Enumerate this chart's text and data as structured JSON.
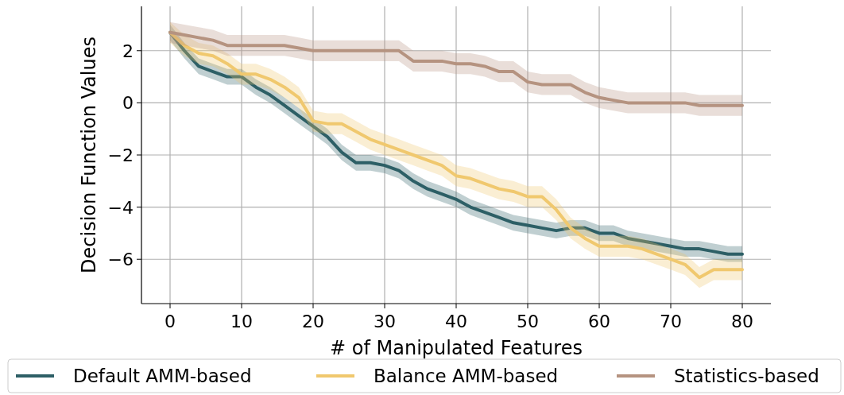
{
  "chart_data": {
    "type": "line",
    "xlabel": "# of Manipulated Features",
    "ylabel": "Decision Function Values",
    "x": [
      0,
      2,
      4,
      6,
      8,
      10,
      12,
      14,
      16,
      18,
      20,
      22,
      24,
      26,
      28,
      30,
      32,
      34,
      36,
      38,
      40,
      42,
      44,
      46,
      48,
      50,
      52,
      54,
      56,
      58,
      60,
      62,
      64,
      66,
      68,
      70,
      72,
      74,
      76,
      78,
      80
    ],
    "xlim": [
      -4,
      84
    ],
    "xticks": [
      0,
      10,
      20,
      30,
      40,
      50,
      60,
      70,
      80
    ],
    "ylim": [
      -7.7,
      3.7
    ],
    "yticks": [
      {
        "value": -6,
        "label": "−6"
      },
      {
        "value": -4,
        "label": "−4"
      },
      {
        "value": -2,
        "label": "−2"
      },
      0,
      2
    ],
    "grid": true,
    "legend": "bottom",
    "line_style": "solid",
    "marker": "none",
    "series": [
      {
        "name": "Default AMM-based",
        "color": "#2d5f66",
        "values": [
          2.7,
          2.0,
          1.4,
          1.2,
          1.0,
          1.0,
          0.6,
          0.3,
          -0.1,
          -0.5,
          -0.9,
          -1.3,
          -1.9,
          -2.3,
          -2.3,
          -2.4,
          -2.6,
          -3.0,
          -3.3,
          -3.5,
          -3.7,
          -4.0,
          -4.2,
          -4.4,
          -4.6,
          -4.7,
          -4.8,
          -4.9,
          -4.8,
          -4.8,
          -5.0,
          -5.0,
          -5.2,
          -5.3,
          -5.4,
          -5.5,
          -5.6,
          -5.6,
          -5.7,
          -5.8,
          -5.8
        ],
        "lower": [
          2.4,
          1.7,
          1.1,
          0.9,
          0.7,
          0.7,
          0.3,
          0.0,
          -0.4,
          -0.8,
          -1.2,
          -1.6,
          -2.2,
          -2.6,
          -2.6,
          -2.7,
          -2.9,
          -3.3,
          -3.6,
          -3.8,
          -4.0,
          -4.3,
          -4.5,
          -4.7,
          -4.9,
          -5.0,
          -5.1,
          -5.2,
          -5.1,
          -5.1,
          -5.3,
          -5.3,
          -5.5,
          -5.6,
          -5.7,
          -5.8,
          -5.9,
          -5.9,
          -6.0,
          -6.1,
          -6.1
        ],
        "upper": [
          3.0,
          2.3,
          1.7,
          1.5,
          1.3,
          1.3,
          0.9,
          0.6,
          0.2,
          -0.2,
          -0.6,
          -1.0,
          -1.6,
          -2.0,
          -2.0,
          -2.1,
          -2.3,
          -2.7,
          -3.0,
          -3.2,
          -3.4,
          -3.7,
          -3.9,
          -4.1,
          -4.3,
          -4.4,
          -4.5,
          -4.6,
          -4.5,
          -4.5,
          -4.7,
          -4.7,
          -4.9,
          -5.0,
          -5.1,
          -5.2,
          -5.3,
          -5.3,
          -5.4,
          -5.5,
          -5.5
        ]
      },
      {
        "name": "Balance AMM-based",
        "color": "#f0c86e",
        "values": [
          2.7,
          2.2,
          1.9,
          1.8,
          1.5,
          1.1,
          1.1,
          0.9,
          0.6,
          0.2,
          -0.7,
          -0.8,
          -0.8,
          -1.1,
          -1.4,
          -1.6,
          -1.8,
          -2.0,
          -2.2,
          -2.4,
          -2.8,
          -2.9,
          -3.1,
          -3.3,
          -3.4,
          -3.6,
          -3.6,
          -4.1,
          -4.8,
          -5.2,
          -5.5,
          -5.5,
          -5.5,
          -5.6,
          -5.8,
          -6.0,
          -6.2,
          -6.7,
          -6.4,
          -6.4,
          -6.4
        ],
        "lower": [
          2.3,
          1.8,
          1.5,
          1.4,
          1.1,
          0.7,
          0.7,
          0.5,
          0.2,
          -0.2,
          -1.1,
          -1.2,
          -1.2,
          -1.5,
          -1.8,
          -2.0,
          -2.2,
          -2.4,
          -2.6,
          -2.8,
          -3.2,
          -3.3,
          -3.5,
          -3.7,
          -3.8,
          -4.0,
          -4.0,
          -4.5,
          -5.2,
          -5.6,
          -5.9,
          -5.9,
          -5.9,
          -6.0,
          -6.2,
          -6.4,
          -6.6,
          -7.1,
          -6.8,
          -6.8,
          -6.8
        ],
        "upper": [
          3.1,
          2.6,
          2.3,
          2.2,
          1.9,
          1.5,
          1.5,
          1.3,
          1.0,
          0.6,
          -0.3,
          -0.4,
          -0.4,
          -0.7,
          -1.0,
          -1.2,
          -1.4,
          -1.6,
          -1.8,
          -2.0,
          -2.4,
          -2.5,
          -2.7,
          -2.9,
          -3.0,
          -3.2,
          -3.2,
          -3.7,
          -4.4,
          -4.8,
          -5.1,
          -5.1,
          -5.1,
          -5.2,
          -5.4,
          -5.6,
          -5.8,
          -6.3,
          -6.0,
          -6.0,
          -6.0
        ]
      },
      {
        "name": "Statistics-based",
        "color": "#b59380",
        "values": [
          2.7,
          2.6,
          2.5,
          2.4,
          2.2,
          2.2,
          2.2,
          2.2,
          2.2,
          2.1,
          2.0,
          2.0,
          2.0,
          2.0,
          2.0,
          2.0,
          2.0,
          1.6,
          1.6,
          1.6,
          1.5,
          1.5,
          1.4,
          1.2,
          1.2,
          0.8,
          0.7,
          0.7,
          0.7,
          0.4,
          0.2,
          0.1,
          0.0,
          0.0,
          0.0,
          0.0,
          0.0,
          -0.1,
          -0.1,
          -0.1,
          -0.1
        ],
        "lower": [
          2.3,
          2.2,
          2.1,
          2.0,
          1.8,
          1.8,
          1.8,
          1.8,
          1.8,
          1.7,
          1.6,
          1.6,
          1.6,
          1.6,
          1.6,
          1.6,
          1.6,
          1.2,
          1.2,
          1.2,
          1.1,
          1.1,
          1.0,
          0.8,
          0.8,
          0.4,
          0.3,
          0.3,
          0.3,
          0.0,
          -0.2,
          -0.3,
          -0.4,
          -0.4,
          -0.4,
          -0.4,
          -0.4,
          -0.5,
          -0.5,
          -0.5,
          -0.5
        ],
        "upper": [
          3.1,
          3.0,
          2.9,
          2.8,
          2.6,
          2.6,
          2.6,
          2.6,
          2.6,
          2.5,
          2.4,
          2.4,
          2.4,
          2.4,
          2.4,
          2.4,
          2.4,
          2.0,
          2.0,
          2.0,
          1.9,
          1.9,
          1.8,
          1.6,
          1.6,
          1.2,
          1.1,
          1.1,
          1.1,
          0.8,
          0.6,
          0.5,
          0.4,
          0.4,
          0.4,
          0.4,
          0.4,
          0.3,
          0.3,
          0.3,
          0.3
        ]
      }
    ]
  }
}
